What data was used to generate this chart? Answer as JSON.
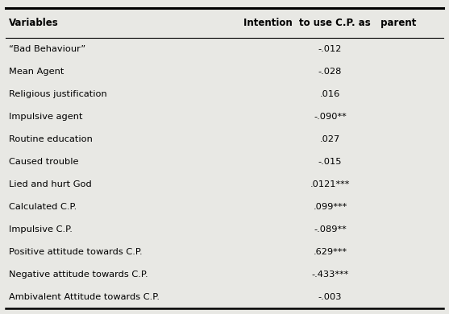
{
  "title": "Intention  to use C.P. as   parent",
  "col1_header": "Variables",
  "rows": [
    [
      "“Bad Behaviour”",
      "-.012"
    ],
    [
      "Mean Agent",
      "-.028"
    ],
    [
      "Religious justification",
      ".016"
    ],
    [
      "Impulsive agent",
      "-.090**"
    ],
    [
      "Routine education",
      ".027"
    ],
    [
      "Caused trouble",
      "-.015"
    ],
    [
      "Lied and hurt God",
      ".0121***"
    ],
    [
      "Calculated C.P.",
      ".099***"
    ],
    [
      "Impulsive C.P.",
      "-.089**"
    ],
    [
      "Positive attitude towards C.P.",
      ".629***"
    ],
    [
      "Negative attitude towards C.P.",
      "-.433***"
    ],
    [
      "Ambivalent Attitude towards C.P.",
      "-.003"
    ]
  ],
  "bg_color": "#e8e8e4",
  "font_size": 8.2,
  "header_font_size": 8.5,
  "fig_width": 5.57,
  "fig_height": 3.9,
  "dpi": 100
}
